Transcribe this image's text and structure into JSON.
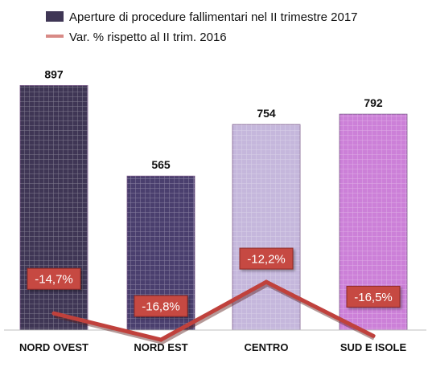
{
  "chart_data": {
    "type": "bar",
    "categories": [
      "NORD OVEST",
      "NORD EST",
      "CENTRO",
      "SUD E ISOLE"
    ],
    "series": [
      {
        "name": "Aperture di procedure fallimentari nel II trimestre 2017",
        "type": "bar",
        "values": [
          897,
          565,
          754,
          792
        ],
        "value_labels": [
          "897",
          "565",
          "754",
          "792"
        ],
        "colors": [
          "#3f3655",
          "#4a3f6e",
          "#c5b7dc",
          "#cc80d8"
        ]
      },
      {
        "name": "Var. % rispetto al II trim. 2016",
        "type": "line",
        "values": [
          -14.7,
          -16.8,
          -12.2,
          -16.5
        ],
        "value_labels": [
          "-14,7%",
          "-16,8%",
          "-12,2%",
          "-16,5%"
        ],
        "color": "#c0413c"
      }
    ],
    "legend": {
      "placement": "top"
    },
    "grid": false,
    "ylim_bars": [
      0,
      1000
    ]
  }
}
